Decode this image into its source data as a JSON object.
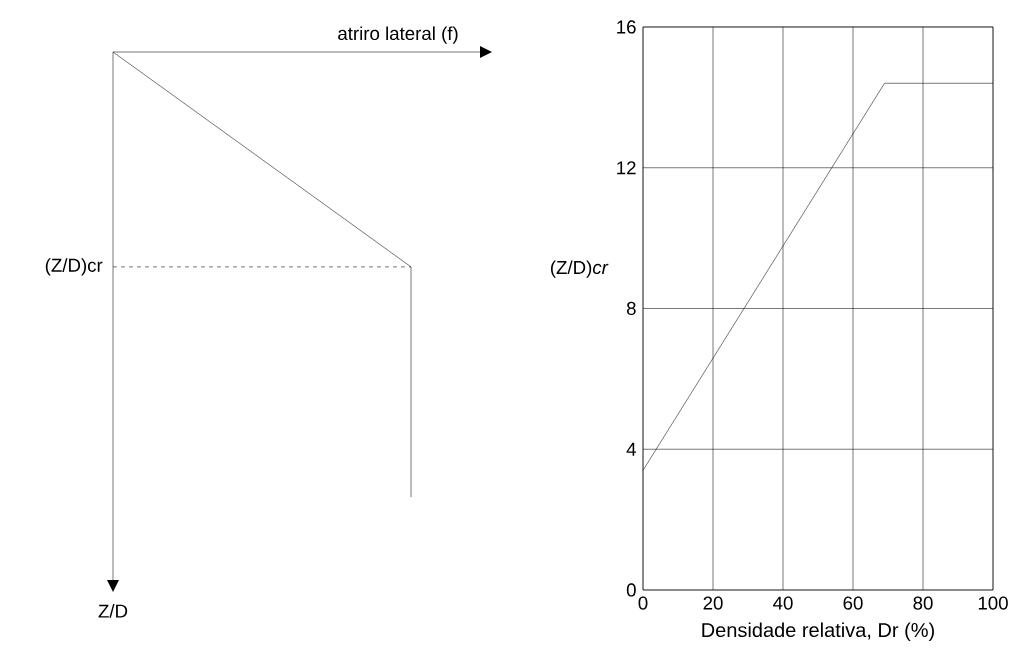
{
  "chart_data": [
    {
      "type": "other",
      "xlabel": "atriro lateral (f)",
      "ylabel": "Z/D",
      "annotations": [
        "(Z/D)cr"
      ]
    },
    {
      "type": "line",
      "xlabel": "Densidade relativa, Dr (%)",
      "ylabel": "(Z/D)*cr*",
      "x": [
        0,
        69,
        100
      ],
      "values": [
        3.4,
        14.4,
        14.4
      ],
      "color": "#000000",
      "xlim": [
        0,
        100
      ],
      "ylim": [
        0,
        16
      ],
      "xticks": [
        0,
        20,
        40,
        60,
        80,
        100
      ],
      "yticks": [
        0,
        4,
        8,
        12,
        16
      ],
      "grid": true
    }
  ]
}
